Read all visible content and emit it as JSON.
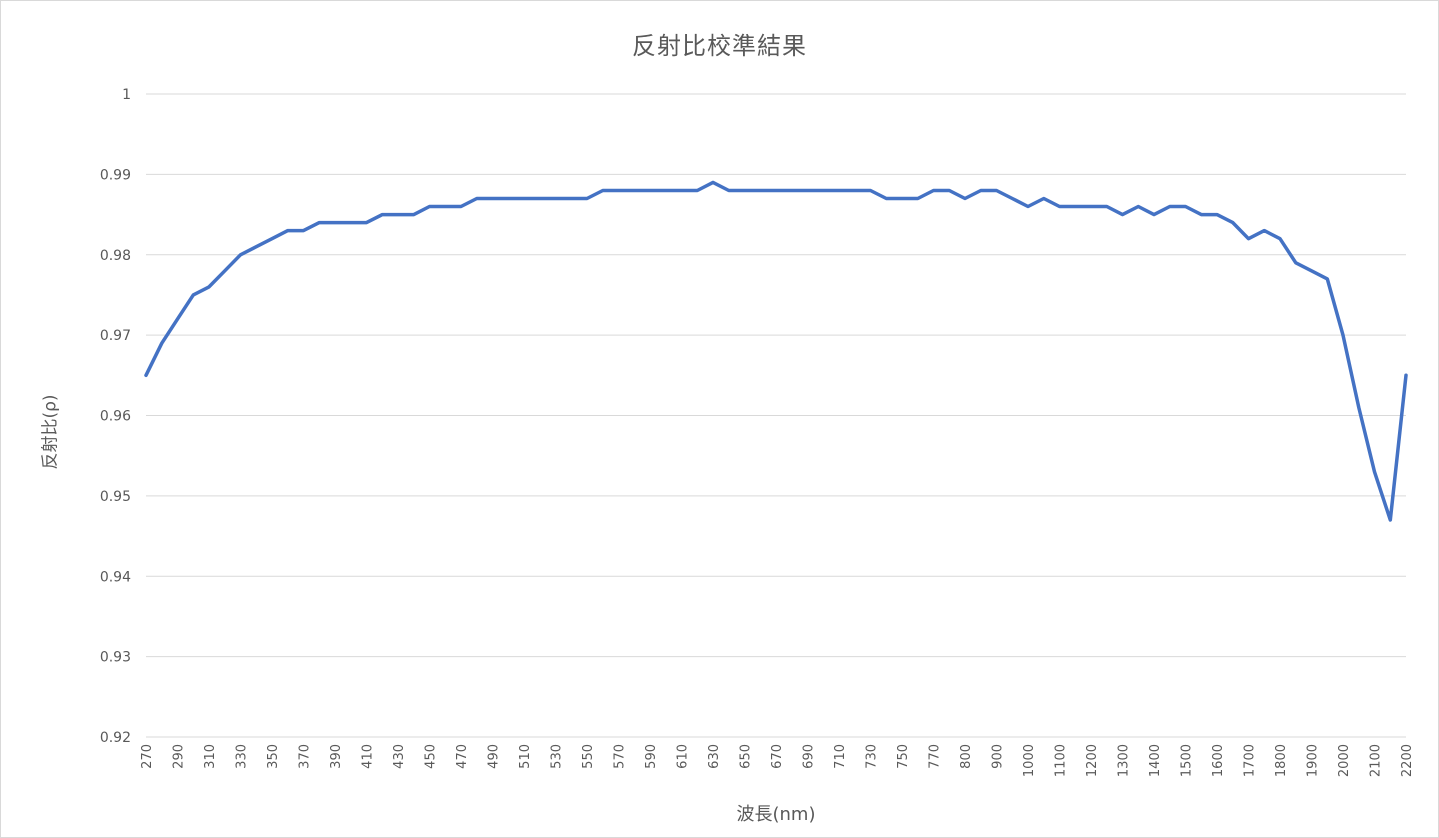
{
  "chart_data": {
    "type": "line",
    "title": "反射比校準結果",
    "xlabel": "波長(nm)",
    "ylabel": "反射比(ρ)",
    "ylim": [
      0.92,
      1
    ],
    "yticks": [
      "0.92",
      "0.93",
      "0.94",
      "0.95",
      "0.96",
      "0.97",
      "0.98",
      "0.99",
      "1"
    ],
    "grid": true,
    "line_color": "#4472C4",
    "x": [
      270,
      280,
      290,
      300,
      310,
      320,
      330,
      340,
      350,
      360,
      370,
      380,
      390,
      400,
      410,
      420,
      430,
      440,
      450,
      460,
      470,
      480,
      490,
      500,
      510,
      520,
      530,
      540,
      550,
      560,
      570,
      580,
      590,
      600,
      610,
      620,
      630,
      640,
      650,
      660,
      670,
      680,
      690,
      700,
      710,
      720,
      730,
      740,
      750,
      760,
      770,
      780,
      800,
      850,
      900,
      950,
      1000,
      1050,
      1100,
      1150,
      1200,
      1250,
      1300,
      1350,
      1400,
      1450,
      1500,
      1550,
      1600,
      1650,
      1700,
      1750,
      1800,
      1850,
      1900,
      1950,
      2000,
      2050,
      2100,
      2150,
      2200
    ],
    "x_labels_shown": [
      "270",
      "290",
      "310",
      "330",
      "350",
      "370",
      "390",
      "410",
      "430",
      "450",
      "470",
      "490",
      "510",
      "530",
      "550",
      "570",
      "590",
      "610",
      "630",
      "650",
      "670",
      "690",
      "710",
      "730",
      "750",
      "770",
      "800",
      "900",
      "1000",
      "1100",
      "1200",
      "1300",
      "1400",
      "1500",
      "1600",
      "1700",
      "1800",
      "1900",
      "2000",
      "2100",
      "2200"
    ],
    "series": [
      {
        "values": [
          0.965,
          0.969,
          0.972,
          0.975,
          0.976,
          0.978,
          0.98,
          0.981,
          0.982,
          0.983,
          0.983,
          0.984,
          0.984,
          0.984,
          0.984,
          0.985,
          0.985,
          0.985,
          0.986,
          0.986,
          0.986,
          0.987,
          0.987,
          0.987,
          0.987,
          0.987,
          0.987,
          0.987,
          0.987,
          0.988,
          0.988,
          0.988,
          0.988,
          0.988,
          0.988,
          0.988,
          0.989,
          0.988,
          0.988,
          0.988,
          0.988,
          0.988,
          0.988,
          0.988,
          0.988,
          0.988,
          0.988,
          0.987,
          0.987,
          0.987,
          0.988,
          0.988,
          0.987,
          0.988,
          0.988,
          0.987,
          0.986,
          0.987,
          0.986,
          0.986,
          0.986,
          0.986,
          0.985,
          0.986,
          0.985,
          0.986,
          0.986,
          0.985,
          0.985,
          0.984,
          0.982,
          0.983,
          0.982,
          0.979,
          0.978,
          0.977,
          0.97,
          0.961,
          0.953,
          0.947,
          0.965
        ]
      }
    ]
  }
}
